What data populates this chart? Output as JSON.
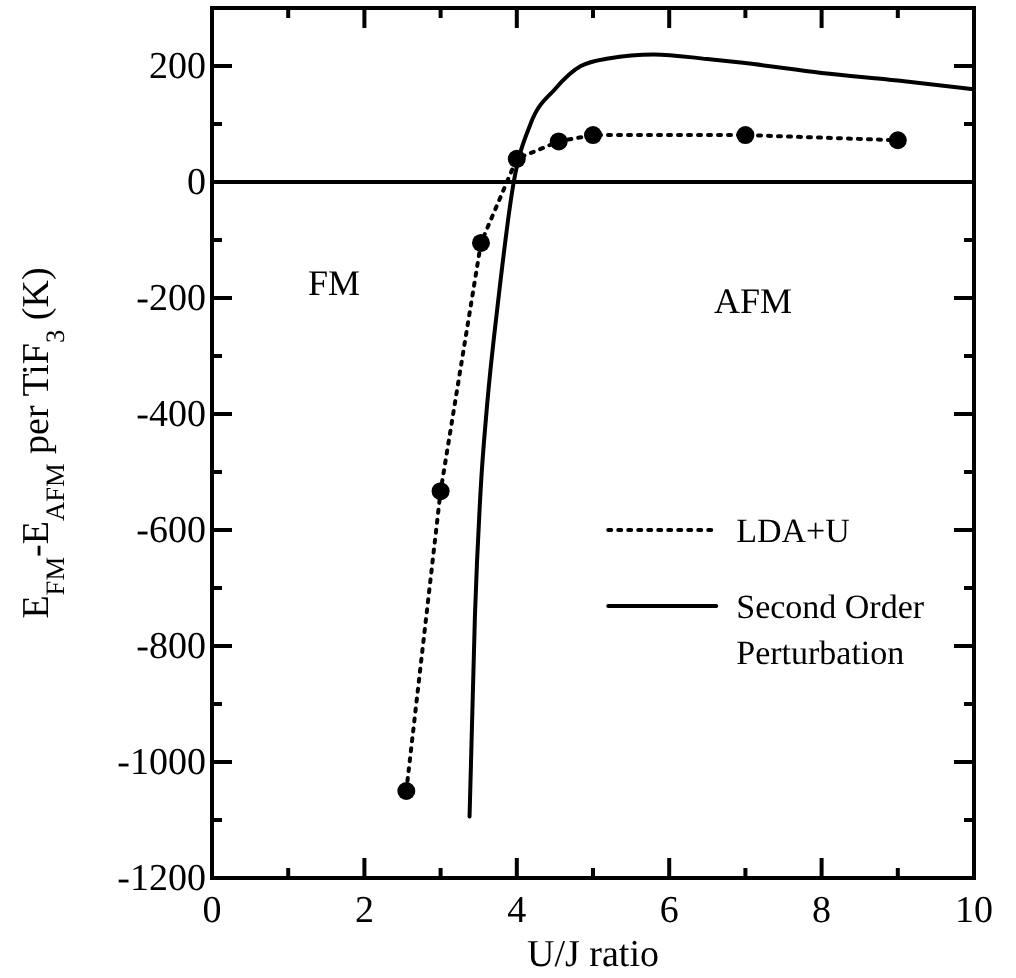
{
  "chart_data": {
    "type": "line",
    "xlabel": "U/J ratio",
    "ylabel": "E$_{FM}$-E$_{AFM}$ per TiF$_{3}$ (K)",
    "xlim": [
      0,
      10
    ],
    "ylim": [
      -1200,
      300
    ],
    "xticks": [
      0,
      {
        "value": 1,
        "label": null
      },
      2,
      {
        "value": 3,
        "label": null
      },
      4,
      {
        "value": 5,
        "label": null
      },
      6,
      {
        "value": 7,
        "label": null
      },
      8,
      {
        "value": 9,
        "label": null
      },
      10
    ],
    "yticks": [
      -1200,
      {
        "value": -1100,
        "label": null
      },
      -1000,
      {
        "value": -900,
        "label": null
      },
      -800,
      {
        "value": -700,
        "label": null
      },
      -600,
      {
        "value": -500,
        "label": null
      },
      -400,
      {
        "value": -300,
        "label": null
      },
      -200,
      {
        "value": -100,
        "label": null
      },
      0,
      {
        "value": 100,
        "label": null
      },
      200,
      {
        "value": 300,
        "label": null
      }
    ],
    "grid": false,
    "legend": "bottom right",
    "ref_lines": [
      {
        "axis": "y",
        "value": 0,
        "color": "#000000",
        "line_style": "solid"
      }
    ],
    "annotations": [
      "FM",
      "AFM"
    ],
    "series": [
      {
        "name": "LDA+U",
        "color": "#000000",
        "marker": "circle",
        "line_style": "dotted",
        "x": [
          2.55,
          3.0,
          3.53,
          4.0,
          4.55,
          5.0,
          7.0,
          9.0
        ],
        "values": [
          -1050,
          -533,
          -105,
          40,
          70,
          81,
          81,
          72
        ]
      },
      {
        "name": "Second Order Perturbation",
        "color": "#000000",
        "marker": "none",
        "line_style": "solid",
        "x": [
          3.38,
          3.45,
          3.53,
          3.6,
          3.76,
          3.96,
          4.18,
          4.5,
          4.84,
          5.2,
          5.8,
          6.5,
          7.0,
          8.0,
          9.0,
          10.0
        ],
        "values": [
          -1094,
          -750,
          -521,
          -400,
          -200,
          0,
          100,
          160,
          200,
          213,
          220,
          212,
          205,
          188,
          175,
          160
        ]
      }
    ]
  }
}
